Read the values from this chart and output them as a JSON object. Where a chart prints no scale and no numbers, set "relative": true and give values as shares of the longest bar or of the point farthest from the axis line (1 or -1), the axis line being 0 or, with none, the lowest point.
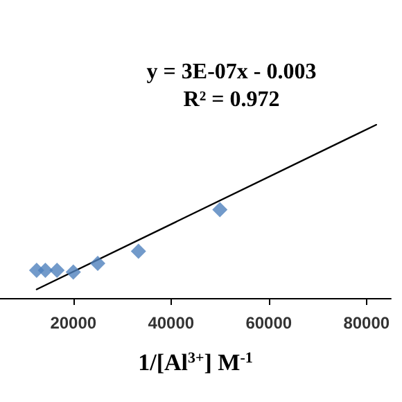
{
  "chart_data": {
    "type": "scatter",
    "relative": true,
    "xlabel": "1/[Al$^{3+}$] M$^{-1}$",
    "annotations": [
      "y = 3E-07x - 0.003",
      "R² = 0.972"
    ],
    "xlim": [
      5000,
      85000
    ],
    "xticks": [
      20000,
      40000,
      60000,
      80000
    ],
    "marker": "diamond",
    "series": [
      {
        "type": "scatter",
        "color": "#4f81bd",
        "x": [
          12500,
          14286,
          16667,
          20000,
          25000,
          33333,
          50000
        ],
        "values": [
          0.16,
          0.16,
          0.16,
          0.15,
          0.2,
          0.27,
          0.51
        ]
      },
      {
        "type": "line",
        "color": "#000000",
        "marker": "none",
        "x": [
          12500,
          82000
        ],
        "values": [
          0.05,
          1
        ]
      }
    ]
  }
}
